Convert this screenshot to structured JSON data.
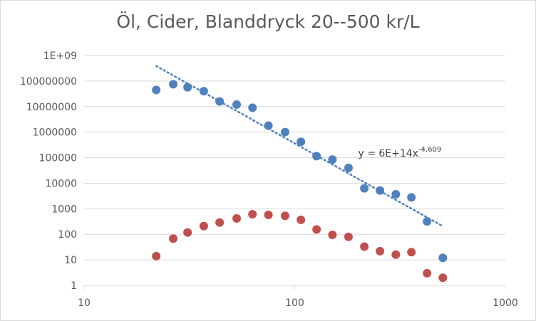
{
  "chart_data": {
    "type": "scatter",
    "title": "Öl, Cider, Blanddryck 20--500 kr/L",
    "xscale": "log",
    "yscale": "log",
    "xlim": [
      10,
      1000
    ],
    "ylim": [
      1,
      1000000000
    ],
    "x_ticks": [
      10,
      100,
      1000
    ],
    "x_tick_labels": [
      "10",
      "100",
      "1000"
    ],
    "y_ticks": [
      1,
      10,
      100,
      1000,
      10000,
      100000,
      1000000,
      10000000,
      100000000,
      1000000000
    ],
    "y_tick_labels": [
      "1",
      "10",
      "100",
      "1000",
      "10000",
      "100000",
      "1000000",
      "10000000",
      "100000000",
      "1E+09"
    ],
    "grid": "horizontal",
    "legend": "none",
    "series": [
      {
        "color": "#4f81bd",
        "x": [
          22,
          26.5,
          31,
          37,
          44,
          53,
          63,
          75,
          90,
          107,
          127,
          151,
          180,
          214,
          254,
          302,
          358,
          425,
          505
        ],
        "y": [
          45000000,
          75000000,
          57000000,
          40000000,
          16000000,
          12000000,
          9000000,
          1800000,
          1000000,
          420000,
          115000,
          85000,
          40000,
          6300,
          5200,
          3700,
          2800,
          320,
          12
        ]
      },
      {
        "color": "#c0504d",
        "x": [
          22,
          26.5,
          31,
          37,
          44,
          53,
          63,
          75,
          90,
          107,
          127,
          151,
          180,
          214,
          254,
          302,
          358,
          425,
          505
        ],
        "y": [
          14,
          68,
          118,
          210,
          290,
          420,
          610,
          580,
          530,
          370,
          155,
          95,
          80,
          33,
          22,
          16,
          20,
          3,
          2
        ]
      }
    ],
    "trendline": {
      "type": "power",
      "series_index": 0,
      "color": "#4f81bd",
      "coef": 600000000000000,
      "exponent": -4.609,
      "x_range": [
        22,
        505
      ],
      "label": "y = 6E+14x",
      "label_exponent": "-4,609"
    }
  }
}
